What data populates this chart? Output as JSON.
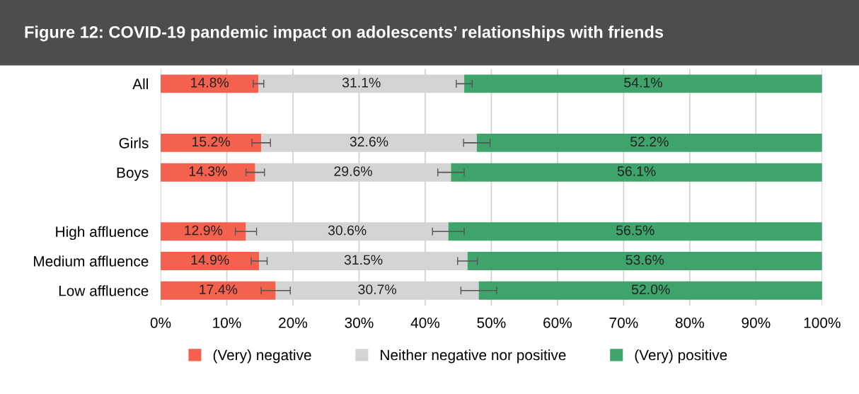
{
  "chart_data": {
    "type": "bar",
    "orientation": "horizontal",
    "stacked": true,
    "title": "Figure 12: COVID-19 pandemic impact on adolescents’ relationships with friends",
    "categories": [
      "All",
      null,
      "Girls",
      "Boys",
      null,
      "High affluence",
      "Medium affluence",
      "Low affluence"
    ],
    "series": [
      {
        "name": "(Very) negative",
        "color": "#f4624f",
        "values": [
          14.8,
          null,
          15.2,
          14.3,
          null,
          12.9,
          14.9,
          17.4
        ],
        "value_labels": [
          "14.8%",
          null,
          "15.2%",
          "14.3%",
          null,
          "12.9%",
          "14.9%",
          "17.4%"
        ],
        "errors": [
          0.8,
          null,
          1.4,
          1.4,
          null,
          1.6,
          1.2,
          2.2
        ]
      },
      {
        "name": "Neither negative nor positive",
        "color": "#d4d4d4",
        "values": [
          31.1,
          null,
          32.6,
          29.6,
          null,
          30.6,
          31.5,
          30.7
        ],
        "value_labels": [
          "31.1%",
          null,
          "32.6%",
          "29.6%",
          null,
          "30.6%",
          "31.5%",
          "30.7%"
        ],
        "errors": [
          1.2,
          null,
          2.0,
          2.0,
          null,
          2.4,
          1.5,
          2.7
        ]
      },
      {
        "name": "(Very) positive",
        "color": "#3fa46b",
        "values": [
          54.1,
          null,
          52.2,
          56.1,
          null,
          56.5,
          53.6,
          52.0
        ],
        "value_labels": [
          "54.1%",
          null,
          "52.2%",
          "56.1%",
          null,
          "56.5%",
          "53.6%",
          "52.0%"
        ]
      }
    ],
    "xlim": [
      0,
      100
    ],
    "xticks": [
      {
        "value": 0,
        "label": "0%"
      },
      {
        "value": 10,
        "label": "10%"
      },
      {
        "value": 20,
        "label": "20%"
      },
      {
        "value": 30,
        "label": "30%"
      },
      {
        "value": 40,
        "label": "40%"
      },
      {
        "value": 50,
        "label": "50%"
      },
      {
        "value": 60,
        "label": "60%"
      },
      {
        "value": 70,
        "label": "70%"
      },
      {
        "value": 80,
        "label": "80%"
      },
      {
        "value": 90,
        "label": "90%"
      },
      {
        "value": 100,
        "label": "100%"
      }
    ],
    "grid": "x",
    "legend": "bottom"
  }
}
